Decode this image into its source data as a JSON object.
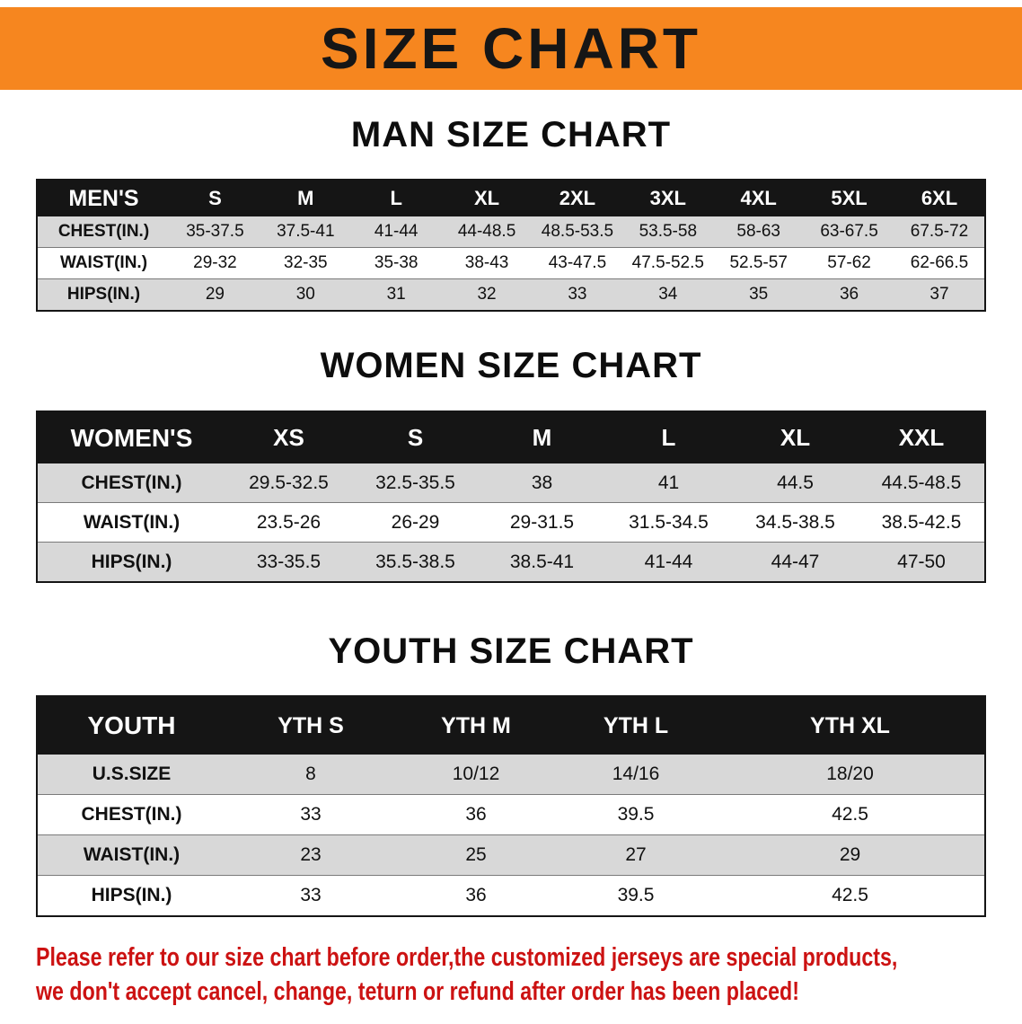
{
  "banner": {
    "title": "SIZE CHART",
    "background_color": "#f6861f",
    "text_color": "#161616"
  },
  "men": {
    "heading": "MAN SIZE CHART",
    "table": {
      "label": "MEN'S",
      "columns": [
        "S",
        "M",
        "L",
        "XL",
        "2XL",
        "3XL",
        "4XL",
        "5XL",
        "6XL"
      ],
      "rows": [
        {
          "label": "CHEST(IN.)",
          "values": [
            "35-37.5",
            "37.5-41",
            "41-44",
            "44-48.5",
            "48.5-53.5",
            "53.5-58",
            "58-63",
            "63-67.5",
            "67.5-72"
          ]
        },
        {
          "label": "WAIST(IN.)",
          "values": [
            "29-32",
            "32-35",
            "35-38",
            "38-43",
            "43-47.5",
            "47.5-52.5",
            "52.5-57",
            "57-62",
            "62-66.5"
          ]
        },
        {
          "label": "HIPS(IN.)",
          "values": [
            "29",
            "30",
            "31",
            "32",
            "33",
            "34",
            "35",
            "36",
            "37"
          ]
        }
      ]
    }
  },
  "women": {
    "heading": "WOMEN SIZE CHART",
    "table": {
      "label": "WOMEN'S",
      "columns": [
        "XS",
        "S",
        "M",
        "L",
        "XL",
        "XXL"
      ],
      "rows": [
        {
          "label": "CHEST(IN.)",
          "values": [
            "29.5-32.5",
            "32.5-35.5",
            "38",
            "41",
            "44.5",
            "44.5-48.5"
          ]
        },
        {
          "label": "WAIST(IN.)",
          "values": [
            "23.5-26",
            "26-29",
            "29-31.5",
            "31.5-34.5",
            "34.5-38.5",
            "38.5-42.5"
          ]
        },
        {
          "label": "HIPS(IN.)",
          "values": [
            "33-35.5",
            "35.5-38.5",
            "38.5-41",
            "41-44",
            "44-47",
            "47-50"
          ]
        }
      ]
    }
  },
  "youth": {
    "heading": "YOUTH SIZE CHART",
    "table": {
      "label": "YOUTH",
      "columns": [
        "YTH S",
        "YTH M",
        "YTH L",
        "YTH XL"
      ],
      "rows": [
        {
          "label": "U.S.SIZE",
          "values": [
            "8",
            "10/12",
            "14/16",
            "18/20"
          ]
        },
        {
          "label": "CHEST(IN.)",
          "values": [
            "33",
            "36",
            "39.5",
            "42.5"
          ]
        },
        {
          "label": "WAIST(IN.)",
          "values": [
            "23",
            "25",
            "27",
            "29"
          ]
        },
        {
          "label": "HIPS(IN.)",
          "values": [
            "33",
            "36",
            "39.5",
            "42.5"
          ]
        }
      ]
    }
  },
  "disclaimer": {
    "color": "#cc1212",
    "lines": [
      "Please refer to our size chart before order,the customized jerseys are special products,",
      "we don't accept cancel, change, teturn or refund after order has been placed!"
    ]
  }
}
